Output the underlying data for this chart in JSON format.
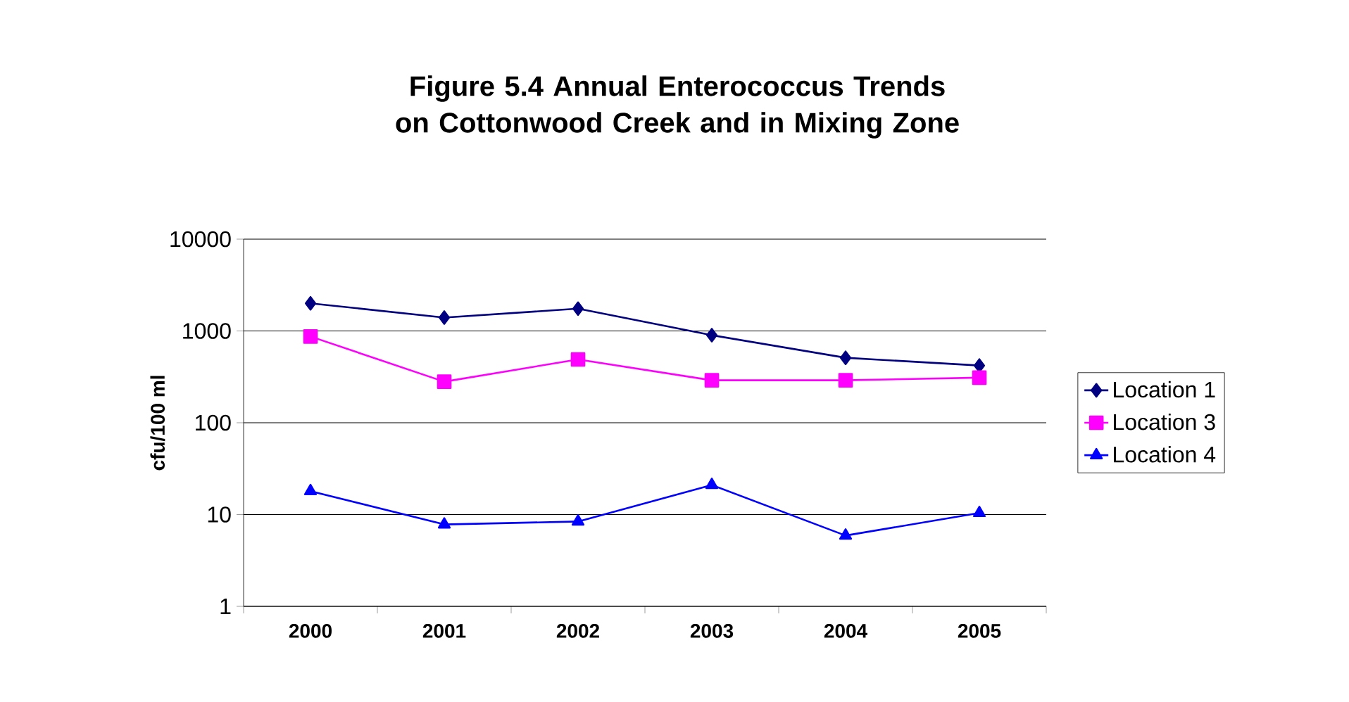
{
  "chart_data": {
    "type": "line",
    "title": "Figure 5.4 Annual Enterococcus Trends on Cottonwood Creek and in Mixing Zone",
    "ylabel": "cfu/100 ml",
    "categories": [
      "2000",
      "2001",
      "2002",
      "2003",
      "2004",
      "2005"
    ],
    "log": "y",
    "ylim": [
      1,
      10000
    ],
    "yticks": [
      1,
      10,
      100,
      1000,
      10000
    ],
    "grid": "y",
    "legend": "right",
    "series": [
      {
        "name": "Location 1",
        "color": "#000080",
        "marker": "diamond",
        "values": [
          2000,
          1400,
          1750,
          900,
          510,
          420
        ]
      },
      {
        "name": "Location 3",
        "color": "#ff00ff",
        "marker": "square",
        "values": [
          870,
          280,
          490,
          290,
          290,
          310
        ]
      },
      {
        "name": "Location 4",
        "color": "#0000ff",
        "marker": "triangle",
        "values": [
          18,
          7.8,
          8.4,
          21,
          5.9,
          10.4
        ]
      }
    ]
  }
}
